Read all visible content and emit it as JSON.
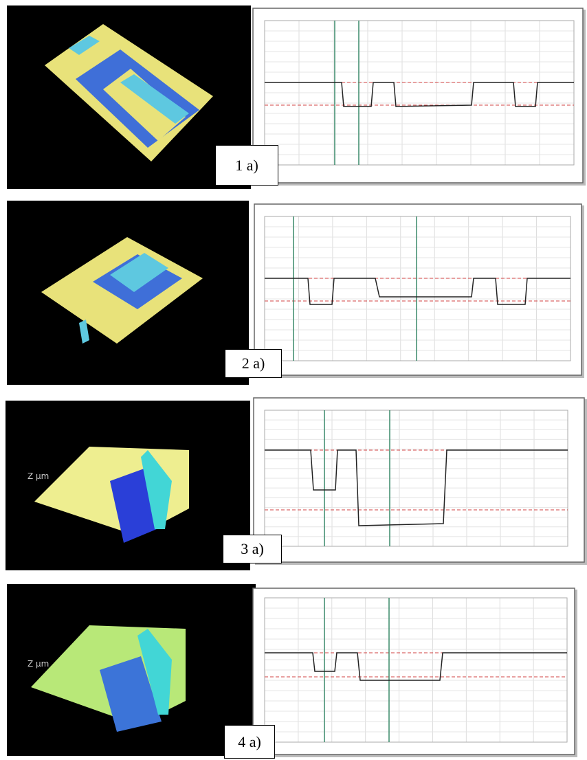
{
  "panels": [
    {
      "label": "1 a)"
    },
    {
      "label": "2 a)"
    },
    {
      "label": "3 a)"
    },
    {
      "label": "4 a)"
    }
  ]
}
